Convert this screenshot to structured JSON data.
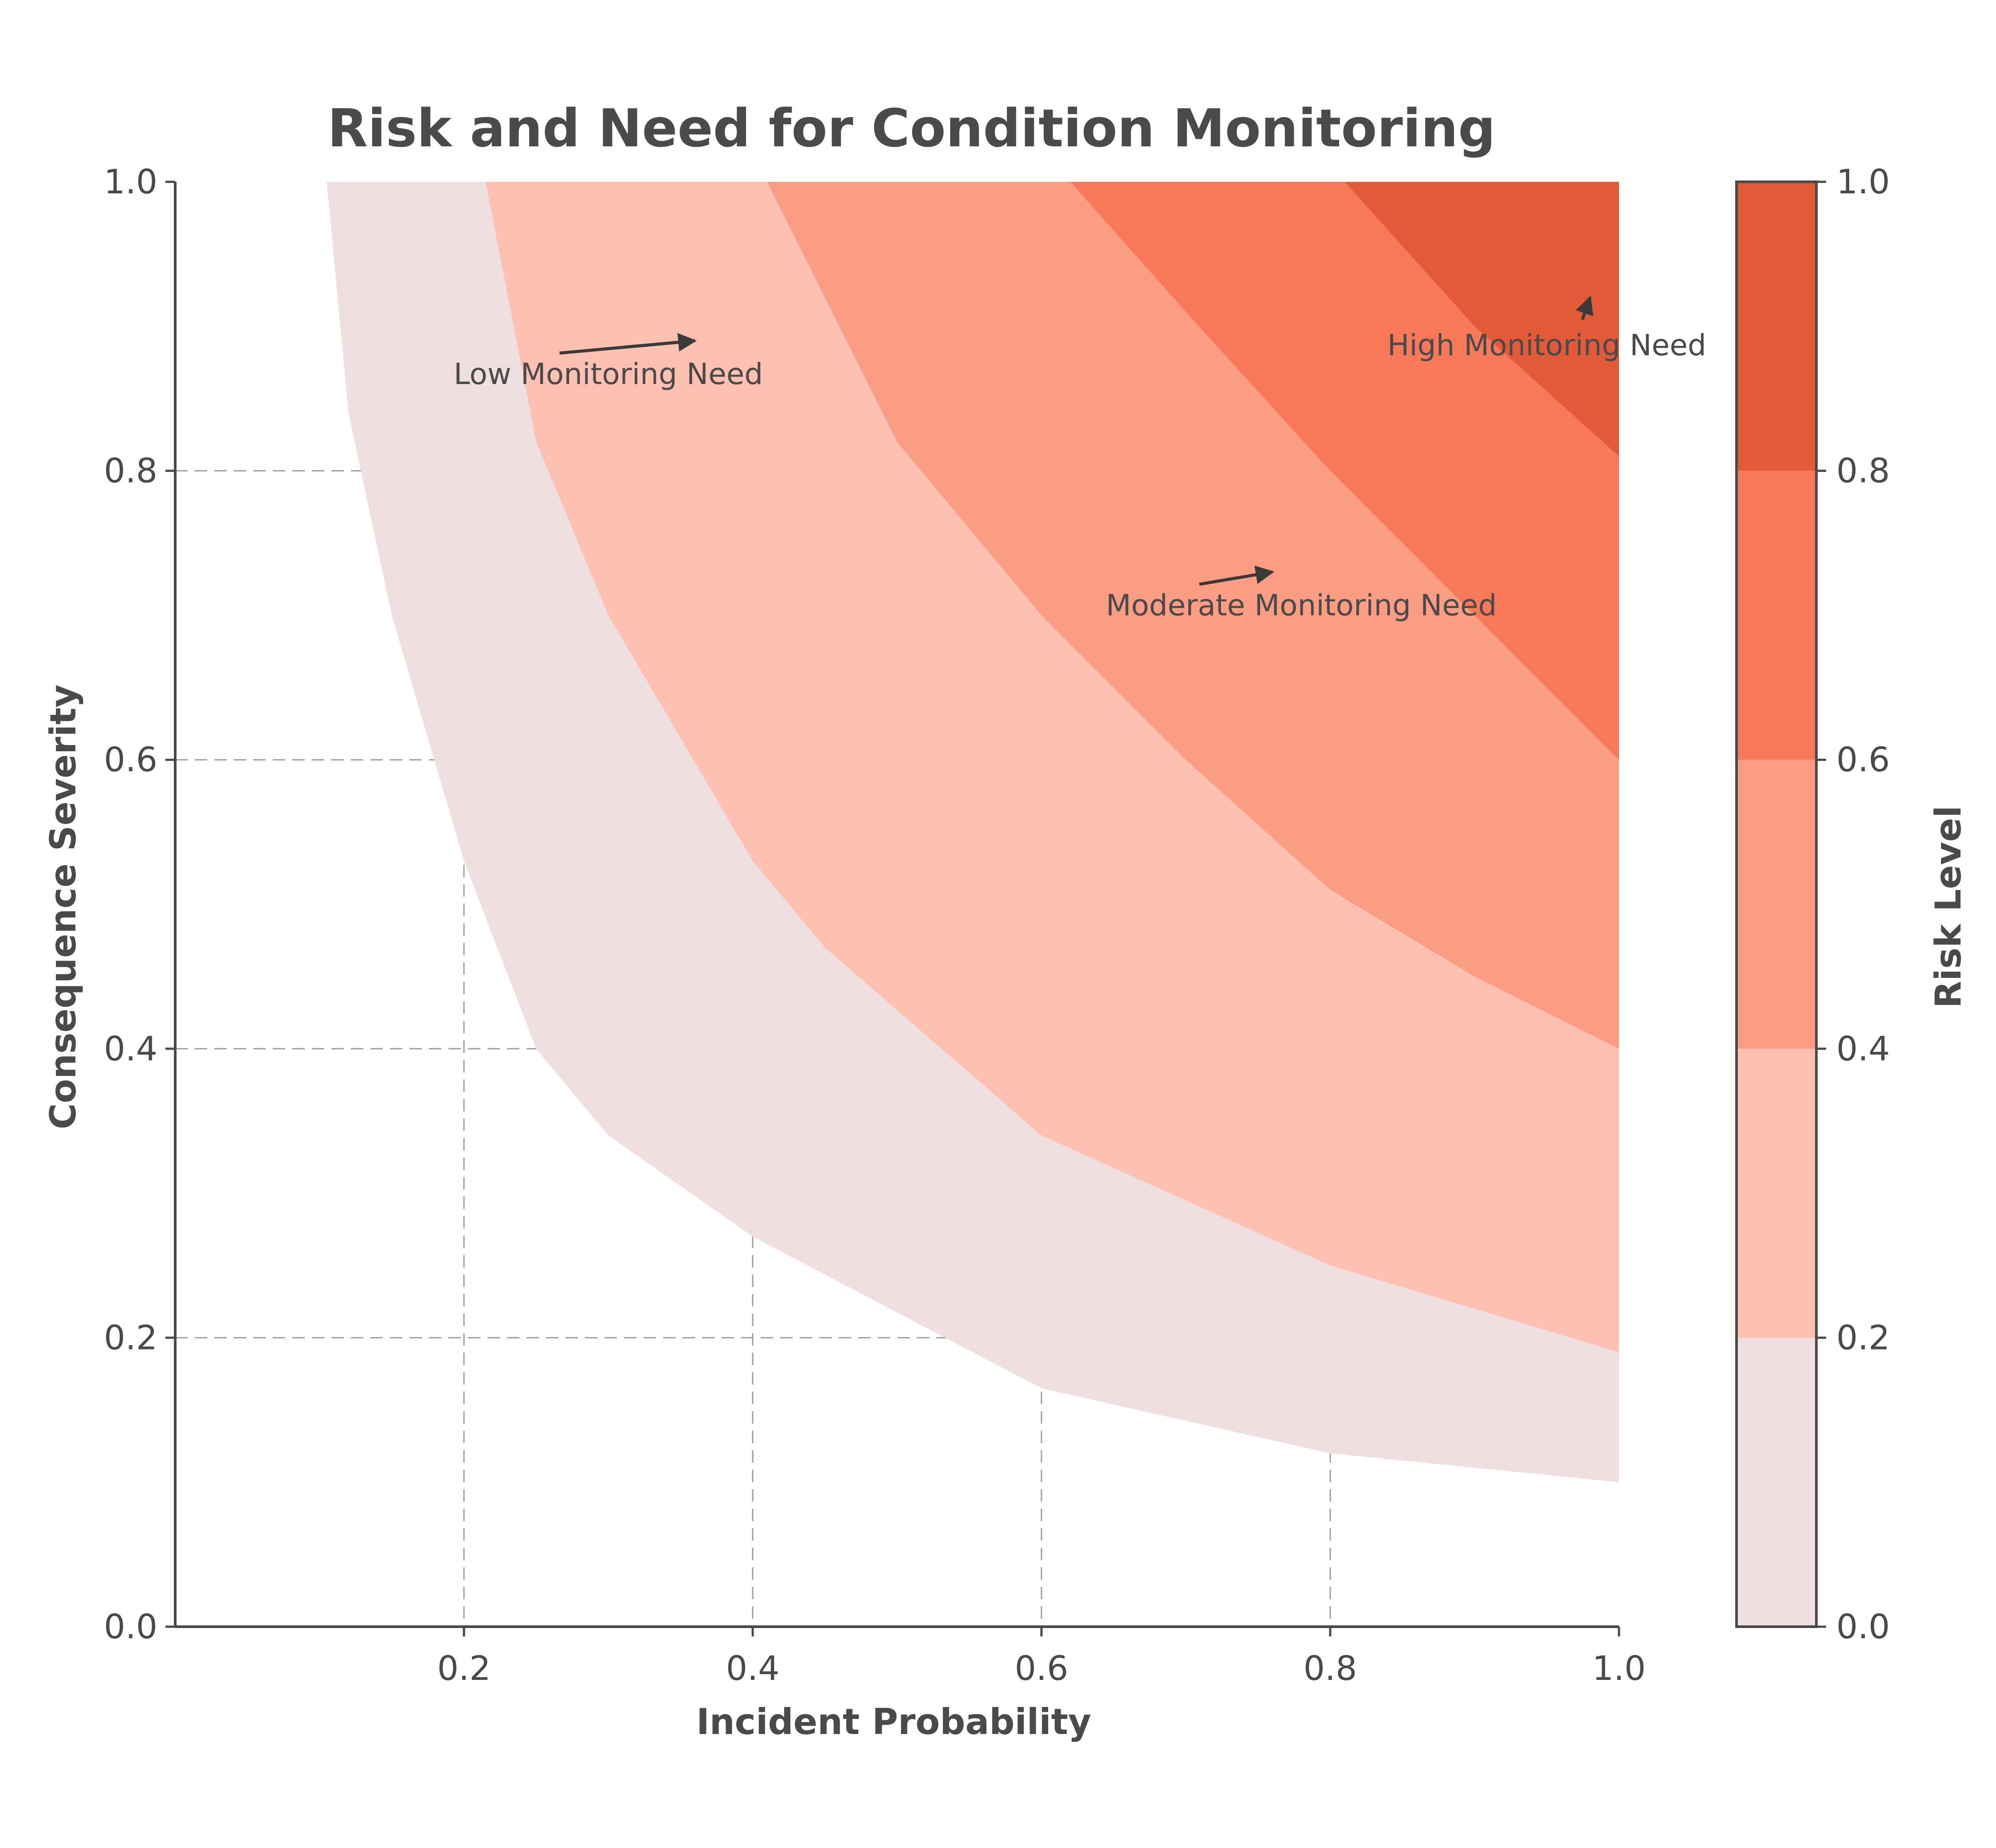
{
  "chart_data": {
    "type": "contour",
    "title": "Risk and Need for Condition Monitoring",
    "xlabel": "Incident Probability",
    "ylabel": "Consequence Severity",
    "xlim": [
      0.0,
      1.0
    ],
    "ylim": [
      0.0,
      1.0
    ],
    "x_ticks": [
      "0.2",
      "0.4",
      "0.6",
      "0.8",
      "1.0"
    ],
    "y_ticks": [
      "0.0",
      "0.2",
      "0.4",
      "0.6",
      "0.8",
      "1.0"
    ],
    "grid": true,
    "function": "risk = probability × severity",
    "levels": [
      0.0,
      0.2,
      0.4,
      0.6,
      0.8,
      1.0
    ],
    "level_band_colors": [
      "#f0dfe0",
      "#fdc0b1",
      "#fb9d83",
      "#f8795a",
      "#e25a38"
    ],
    "observed_band_boundaries": [
      {
        "level": 0.1,
        "points": [
          [
            0.105,
            1.0
          ],
          [
            0.12,
            0.84
          ],
          [
            0.15,
            0.7
          ],
          [
            0.2,
            0.53
          ],
          [
            0.25,
            0.4
          ],
          [
            0.3,
            0.34
          ],
          [
            0.4,
            0.27
          ],
          [
            0.6,
            0.165
          ],
          [
            0.8,
            0.12
          ],
          [
            1.0,
            0.1
          ]
        ]
      },
      {
        "level": 0.2,
        "points": [
          [
            0.215,
            1.0
          ],
          [
            0.25,
            0.82
          ],
          [
            0.3,
            0.7
          ],
          [
            0.4,
            0.53
          ],
          [
            0.45,
            0.47
          ],
          [
            0.6,
            0.34
          ],
          [
            0.8,
            0.25
          ],
          [
            1.0,
            0.19
          ]
        ]
      },
      {
        "level": 0.4,
        "points": [
          [
            0.41,
            1.0
          ],
          [
            0.5,
            0.82
          ],
          [
            0.6,
            0.7
          ],
          [
            0.7,
            0.6
          ],
          [
            0.8,
            0.51
          ],
          [
            0.9,
            0.45
          ],
          [
            1.0,
            0.4
          ]
        ]
      },
      {
        "level": 0.6,
        "points": [
          [
            0.62,
            1.0
          ],
          [
            0.7,
            0.91
          ],
          [
            0.8,
            0.8
          ],
          [
            0.9,
            0.7
          ],
          [
            1.0,
            0.6
          ]
        ]
      },
      {
        "level": 0.8,
        "points": [
          [
            0.81,
            1.0
          ],
          [
            0.9,
            0.9
          ],
          [
            1.0,
            0.81
          ]
        ]
      }
    ],
    "annotations": [
      {
        "text": "Low Monitoring Need",
        "x": 0.3,
        "y": 0.86,
        "arrow_to": [
          0.36,
          0.89
        ]
      },
      {
        "text": "Moderate Monitoring Need",
        "x": 0.78,
        "y": 0.7,
        "arrow_to": [
          0.76,
          0.73
        ]
      },
      {
        "text": "High Monitoring Need",
        "x": 0.95,
        "y": 0.88,
        "arrow_to": [
          0.98,
          0.92
        ]
      }
    ],
    "colorbar": {
      "label": "Risk Level",
      "ticks": [
        "0.0",
        "0.2",
        "0.4",
        "0.6",
        "0.8",
        "1.0"
      ],
      "range": [
        0.0,
        1.0
      ]
    }
  }
}
